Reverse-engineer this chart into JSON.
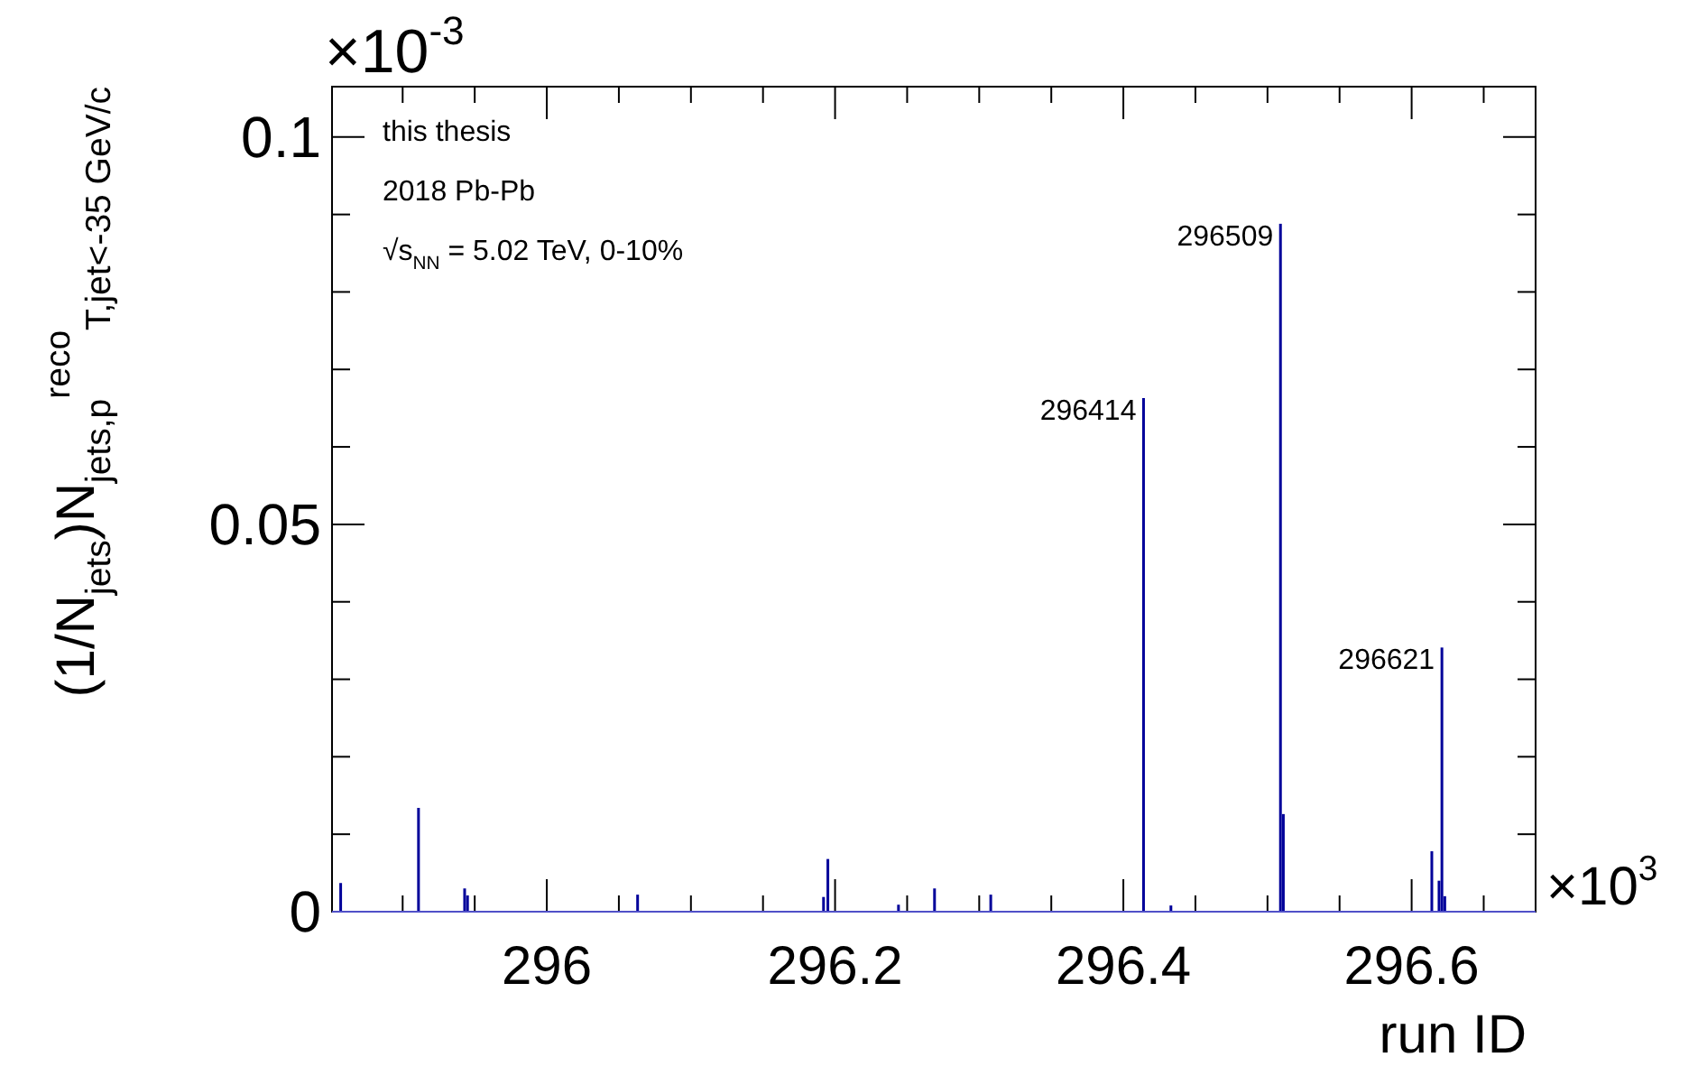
{
  "chart_data": {
    "type": "bar",
    "xlabel": "run ID",
    "ylabel": "(1/N$_{jets}$)N$_{jets,p}$$^{reco}$$_{T,jet}$$_{<-35 GeV/c}$",
    "x": [
      295.857,
      295.911,
      295.943,
      295.945,
      296.063,
      296.192,
      296.195,
      296.244,
      296.269,
      296.308,
      296.414,
      296.433,
      296.509,
      296.511,
      296.614,
      296.619,
      296.621,
      296.623
    ],
    "values": [
      0.0037,
      0.0134,
      0.003,
      0.0021,
      0.0022,
      0.0019,
      0.0068,
      0.0009,
      0.003,
      0.0022,
      0.0663,
      0.0008,
      0.0888,
      0.0126,
      0.0078,
      0.004,
      0.0341,
      0.002
    ],
    "color": "#00009a",
    "xlim": [
      295.851,
      296.686
    ],
    "xticks": [
      {
        "value": 295.9,
        "label": null
      },
      {
        "value": 295.95,
        "label": null
      },
      296,
      {
        "value": 296.05,
        "label": null
      },
      {
        "value": 296.1,
        "label": null
      },
      {
        "value": 296.15,
        "label": null
      },
      296.2,
      {
        "value": 296.25,
        "label": null
      },
      {
        "value": 296.3,
        "label": null
      },
      {
        "value": 296.35,
        "label": null
      },
      296.4,
      {
        "value": 296.45,
        "label": null
      },
      {
        "value": 296.5,
        "label": null
      },
      {
        "value": 296.55,
        "label": null
      },
      296.6,
      {
        "value": 296.65,
        "label": null
      }
    ],
    "ylim": [
      0,
      0.1065
    ],
    "yticks": [
      0,
      {
        "value": 0.01,
        "label": null
      },
      {
        "value": 0.02,
        "label": null
      },
      {
        "value": 0.03,
        "label": null
      },
      {
        "value": 0.04,
        "label": null
      },
      0.05,
      {
        "value": 0.06,
        "label": null
      },
      {
        "value": 0.07,
        "label": null
      },
      {
        "value": 0.08,
        "label": null
      },
      {
        "value": 0.09,
        "label": null
      },
      0.1
    ],
    "annotations": [
      "this thesis",
      "2018 Pb-Pb",
      "√s$_{NN}$ = 5.02 TeV, 0-10%",
      "×10$^{-3}$",
      "×10$^{3}$",
      {
        "text": "296414",
        "x": 296.414,
        "y": 0.0663
      },
      {
        "text": "296509",
        "x": 296.509,
        "y": 0.0888
      },
      {
        "text": "296621",
        "x": 296.621,
        "y": 0.0341
      }
    ]
  }
}
